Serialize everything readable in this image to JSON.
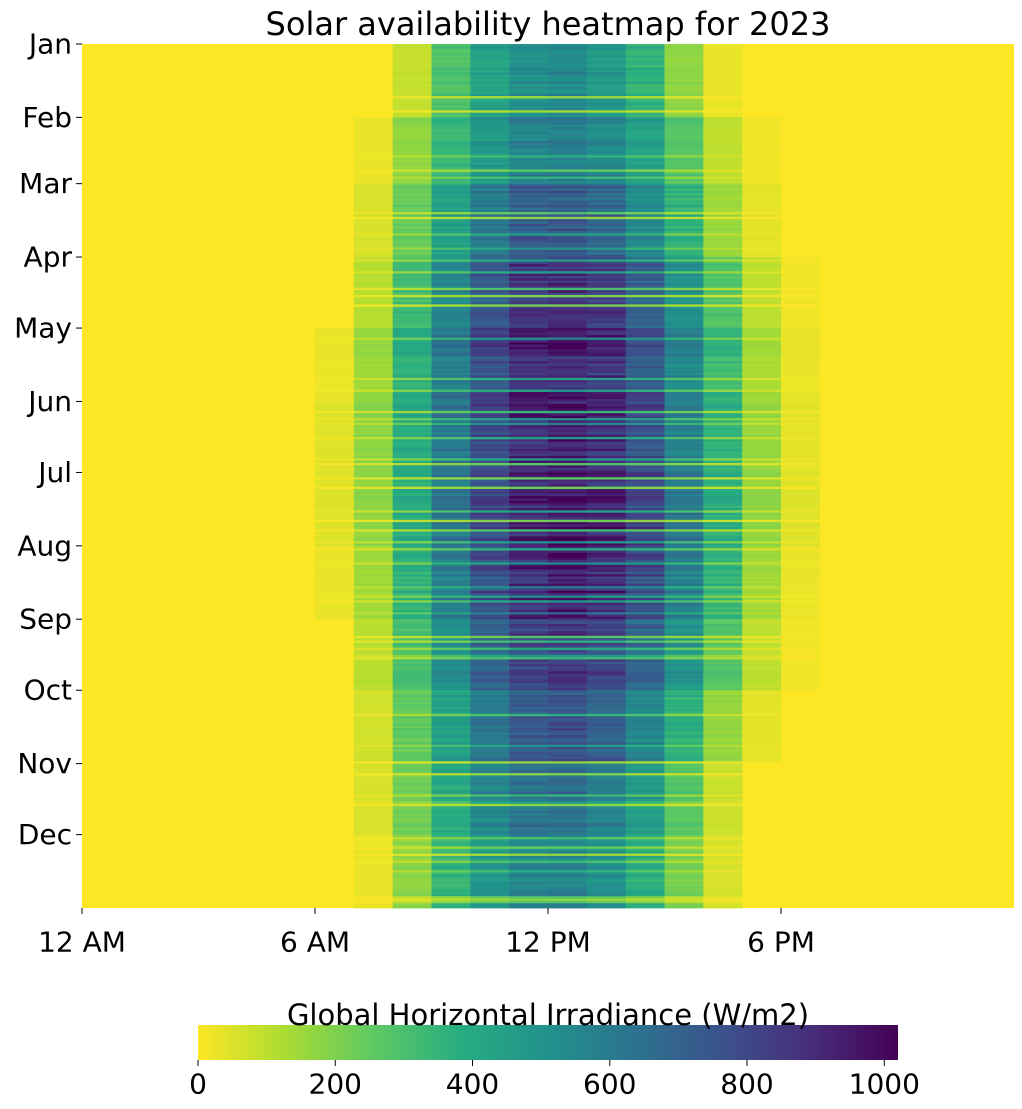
{
  "chart_data": {
    "type": "heatmap",
    "title": "Solar availability heatmap for 2023",
    "x_tick_labels": [
      "12 AM",
      "6 AM",
      "12 PM",
      "6 PM"
    ],
    "x_tick_hours": [
      0,
      6,
      12,
      18
    ],
    "x_range_hours": [
      0,
      24
    ],
    "y_tick_labels": [
      "Jan",
      "Feb",
      "Mar",
      "Apr",
      "May",
      "Jun",
      "Jul",
      "Aug",
      "Sep",
      "Oct",
      "Nov",
      "Dec"
    ],
    "y_tick_day_of_year": [
      1,
      32,
      60,
      91,
      121,
      152,
      182,
      213,
      244,
      274,
      305,
      335
    ],
    "days_in_year": 365,
    "hours_per_day": 24,
    "colorbar": {
      "label": "Global Horizontal Irradiance (W/m2)",
      "range": [
        0,
        1020
      ],
      "ticks": [
        0,
        200,
        400,
        600,
        800,
        1000
      ],
      "colormap": "viridis_r",
      "orientation": "horizontal",
      "placement": "bottom"
    },
    "monthly_typical_hourly_ghi": [
      {
        "month": "Jan",
        "hours": [
          8,
          9,
          10,
          11,
          12,
          13,
          14,
          15,
          16
        ],
        "values": [
          90,
          300,
          450,
          540,
          560,
          500,
          380,
          180,
          30
        ]
      },
      {
        "month": "Feb",
        "hours": [
          7,
          8,
          9,
          10,
          11,
          12,
          13,
          14,
          15,
          16,
          17
        ],
        "values": [
          30,
          180,
          360,
          500,
          600,
          620,
          570,
          460,
          290,
          100,
          20
        ]
      },
      {
        "month": "Mar",
        "hours": [
          7,
          8,
          9,
          10,
          11,
          12,
          13,
          14,
          15,
          16,
          17
        ],
        "values": [
          60,
          250,
          460,
          630,
          740,
          760,
          700,
          560,
          370,
          160,
          40
        ]
      },
      {
        "month": "Apr",
        "hours": [
          7,
          8,
          9,
          10,
          11,
          12,
          13,
          14,
          15,
          16,
          17,
          18
        ],
        "values": [
          110,
          330,
          560,
          760,
          870,
          900,
          860,
          720,
          520,
          290,
          100,
          20
        ]
      },
      {
        "month": "May",
        "hours": [
          6,
          7,
          8,
          9,
          10,
          11,
          12,
          13,
          14,
          15,
          16,
          17,
          18
        ],
        "values": [
          30,
          160,
          390,
          620,
          810,
          920,
          950,
          910,
          780,
          580,
          350,
          140,
          30
        ]
      },
      {
        "month": "Jun",
        "hours": [
          6,
          7,
          8,
          9,
          10,
          11,
          12,
          13,
          14,
          15,
          16,
          17,
          18
        ],
        "values": [
          50,
          190,
          420,
          650,
          840,
          950,
          980,
          940,
          810,
          610,
          380,
          170,
          40
        ]
      },
      {
        "month": "Jul",
        "hours": [
          6,
          7,
          8,
          9,
          10,
          11,
          12,
          13,
          14,
          15,
          16,
          17,
          18
        ],
        "values": [
          50,
          180,
          410,
          640,
          830,
          950,
          990,
          950,
          830,
          630,
          400,
          180,
          50
        ]
      },
      {
        "month": "Aug",
        "hours": [
          6,
          7,
          8,
          9,
          10,
          11,
          12,
          13,
          14,
          15,
          16,
          17,
          18
        ],
        "values": [
          30,
          150,
          380,
          610,
          800,
          920,
          960,
          920,
          800,
          600,
          370,
          150,
          30
        ]
      },
      {
        "month": "Sep",
        "hours": [
          7,
          8,
          9,
          10,
          11,
          12,
          13,
          14,
          15,
          16,
          17,
          18
        ],
        "values": [
          110,
          320,
          540,
          730,
          840,
          880,
          840,
          720,
          520,
          290,
          100,
          20
        ]
      },
      {
        "month": "Oct",
        "hours": [
          7,
          8,
          9,
          10,
          11,
          12,
          13,
          14,
          15,
          16,
          17
        ],
        "values": [
          70,
          260,
          460,
          640,
          750,
          780,
          720,
          580,
          380,
          170,
          40
        ]
      },
      {
        "month": "Nov",
        "hours": [
          7,
          8,
          9,
          10,
          11,
          12,
          13,
          14,
          15,
          16
        ],
        "values": [
          60,
          230,
          410,
          560,
          640,
          660,
          600,
          470,
          280,
          80
        ]
      },
      {
        "month": "Dec",
        "hours": [
          7,
          8,
          9,
          10,
          11,
          12,
          13,
          14,
          15,
          16
        ],
        "values": [
          30,
          180,
          360,
          500,
          570,
          580,
          530,
          400,
          220,
          60
        ]
      }
    ]
  }
}
